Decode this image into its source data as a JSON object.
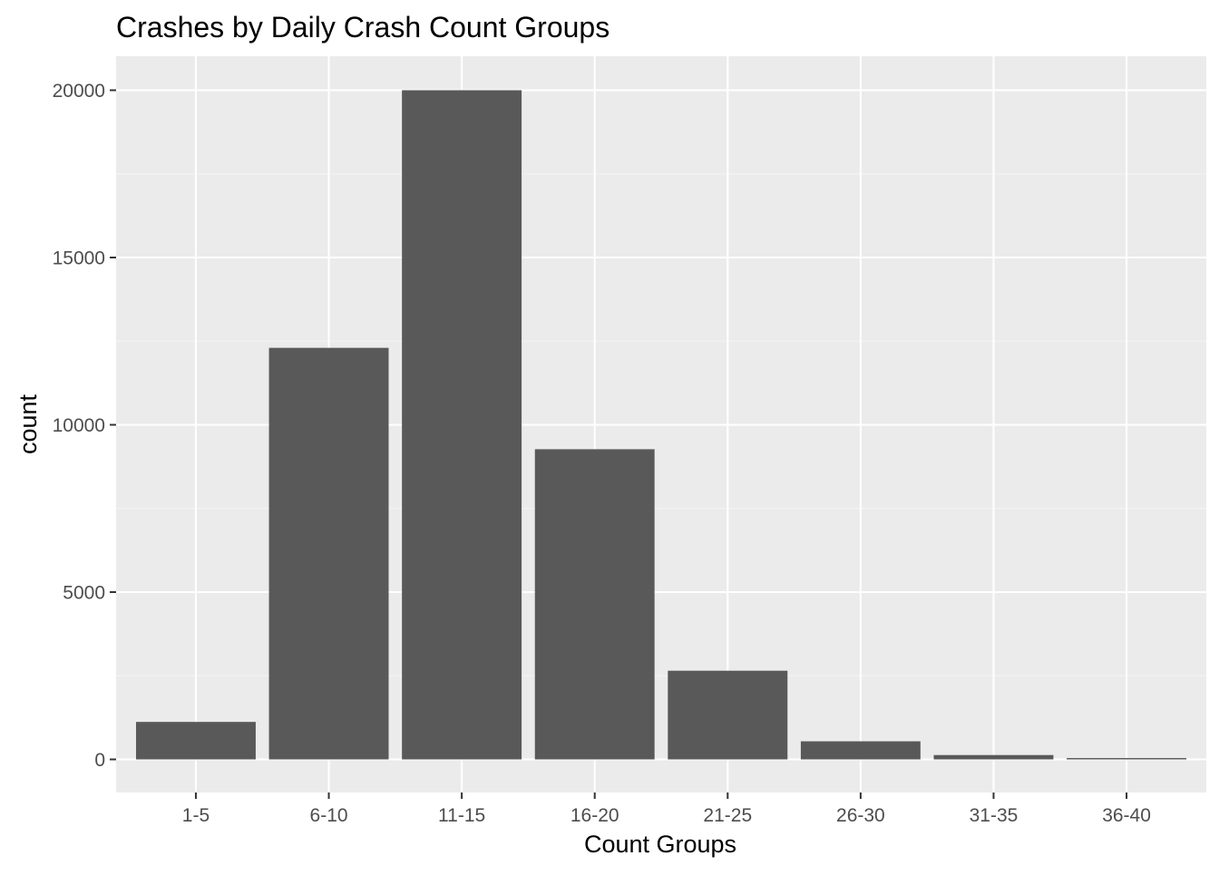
{
  "chart_data": {
    "type": "bar",
    "title": "Crashes by Daily Crash Count Groups",
    "xlabel": "Count Groups",
    "ylabel": "count",
    "categories": [
      "1-5",
      "6-10",
      "11-15",
      "16-20",
      "21-25",
      "26-30",
      "31-35",
      "36-40"
    ],
    "values": [
      1120,
      12300,
      20000,
      9270,
      2650,
      540,
      130,
      40
    ],
    "ylim": [
      -950,
      21000
    ],
    "yticks": [
      0,
      5000,
      10000,
      15000,
      20000
    ],
    "ytick_labels": [
      "0",
      "5000",
      "10000",
      "15000",
      "20000"
    ],
    "grid": true,
    "legend": "none",
    "colors": {
      "bar": "#595959",
      "panel_background": "#ebebeb",
      "grid_major": "#ffffff",
      "grid_minor": "#f5f5f5",
      "tick_text": "#4d4d4d",
      "tick_mark": "#333333",
      "text": "#000000"
    }
  }
}
